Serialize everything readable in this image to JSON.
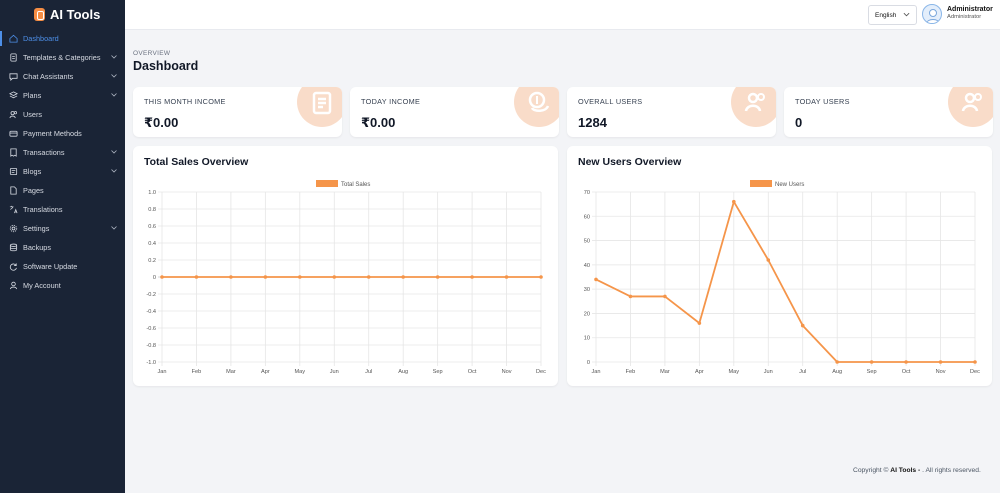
{
  "brand": {
    "name": "AI Tools"
  },
  "sidebar": {
    "items": [
      {
        "label": "Dashboard",
        "icon": "home-icon",
        "active": true,
        "has_submenu": false
      },
      {
        "label": "Templates & Categories",
        "icon": "document-icon",
        "has_submenu": true
      },
      {
        "label": "Chat Assistants",
        "icon": "chat-icon",
        "has_submenu": true
      },
      {
        "label": "Plans",
        "icon": "layers-icon",
        "has_submenu": true
      },
      {
        "label": "Users",
        "icon": "users-icon",
        "has_submenu": false
      },
      {
        "label": "Payment Methods",
        "icon": "card-icon",
        "has_submenu": false
      },
      {
        "label": "Transactions",
        "icon": "receipt-icon",
        "has_submenu": true
      },
      {
        "label": "Blogs",
        "icon": "blog-icon",
        "has_submenu": true
      },
      {
        "label": "Pages",
        "icon": "page-icon",
        "has_submenu": false
      },
      {
        "label": "Translations",
        "icon": "translate-icon",
        "has_submenu": false
      },
      {
        "label": "Settings",
        "icon": "gear-icon",
        "has_submenu": true
      },
      {
        "label": "Backups",
        "icon": "database-icon",
        "has_submenu": false
      },
      {
        "label": "Software Update",
        "icon": "refresh-icon",
        "has_submenu": false
      },
      {
        "label": "My Account",
        "icon": "user-icon",
        "has_submenu": false
      }
    ]
  },
  "header": {
    "language": "English",
    "user_name": "Administrator",
    "user_role": "Administrator"
  },
  "page": {
    "overline": "OVERVIEW",
    "title": "Dashboard"
  },
  "stats": [
    {
      "label": "THIS MONTH INCOME",
      "value": "₹0.00",
      "icon": "invoice-icon"
    },
    {
      "label": "TODAY INCOME",
      "value": "₹0.00",
      "icon": "coins-icon"
    },
    {
      "label": "OVERALL USERS",
      "value": "1284",
      "icon": "users-icon"
    },
    {
      "label": "TODAY USERS",
      "value": "0",
      "icon": "users-icon"
    }
  ],
  "colors": {
    "accent": "#f5954a",
    "sidebar_bg": "#1a2436",
    "active_link": "#4d8fe8",
    "icon_circle": "#f9dcc9"
  },
  "chart_data": [
    {
      "type": "line",
      "title": "Total Sales Overview",
      "categories": [
        "Jan",
        "Feb",
        "Mar",
        "Apr",
        "May",
        "Jun",
        "Jul",
        "Aug",
        "Sep",
        "Oct",
        "Nov",
        "Dec"
      ],
      "series": [
        {
          "name": "Total Sales",
          "values": [
            0,
            0,
            0,
            0,
            0,
            0,
            0,
            0,
            0,
            0,
            0,
            0
          ]
        }
      ],
      "ylim": [
        -1.0,
        1.0
      ],
      "yticks": [
        "1.0",
        "0.8",
        "0.6",
        "0.4",
        "0.2",
        "0",
        "-0.2",
        "-0.4",
        "-0.6",
        "-0.8",
        "-1.0"
      ],
      "grid": true,
      "legend": "top-center"
    },
    {
      "type": "line",
      "title": "New Users Overview",
      "categories": [
        "Jan",
        "Feb",
        "Mar",
        "Apr",
        "May",
        "Jun",
        "Jul",
        "Aug",
        "Sep",
        "Oct",
        "Nov",
        "Dec"
      ],
      "series": [
        {
          "name": "New Users",
          "values": [
            34,
            27,
            27,
            16,
            66,
            42,
            15,
            0,
            0,
            0,
            0,
            0
          ]
        }
      ],
      "ylim": [
        0,
        70
      ],
      "yticks": [
        "70",
        "60",
        "50",
        "40",
        "30",
        "20",
        "10",
        "0"
      ],
      "grid": true,
      "legend": "top-center"
    }
  ],
  "footer": {
    "prefix": "Copyright © ",
    "brand": "AI Tools - ",
    "suffix": ". All rights reserved."
  }
}
